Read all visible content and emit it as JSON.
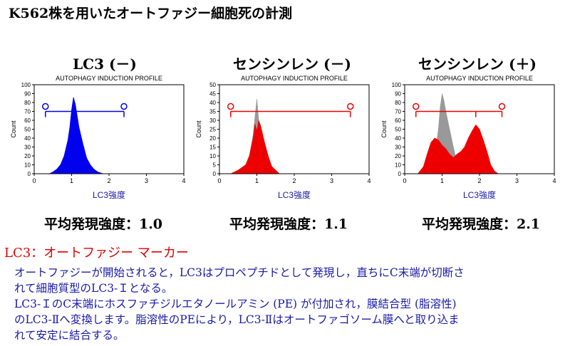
{
  "page": {
    "title": "K562株を用いたオートファジー細胞死の計測",
    "marker_label": "LC3：オートファジー マーカー",
    "description": [
      "オートファジーが開始されると，LC3はプロペプチドとして発現し，直ちにC末端が切断さ",
      "れて細胞質型のLC3-Ｉとなる。",
      "LC3-ＩのC末端にホスファチジルエタノールアミン (PE) が付加され，膜結合型 (脂溶性)",
      "のLC3-Ⅱへ変換します。脂溶性のPEにより，LC3-Ⅱはオートファゴソーム膜へと取り込ま",
      "れて安定に結合する。"
    ]
  },
  "chart_data": [
    {
      "type": "area",
      "panel_title": "LC3 (－)",
      "title": "AUTOPHAGY INDUCTION PROFILE",
      "xlabel": "LC3強度",
      "ylabel": "Count",
      "xlim": [
        0,
        4
      ],
      "ylim": [
        0,
        100
      ],
      "xticks": [
        0,
        1,
        2,
        3,
        4
      ],
      "yticks": [
        0,
        10,
        20,
        30,
        40,
        50,
        60,
        70,
        80,
        90,
        100
      ],
      "series": [
        {
          "color": "#0000ee",
          "values": [
            [
              0.4,
              0
            ],
            [
              0.5,
              2
            ],
            [
              0.6,
              5
            ],
            [
              0.7,
              10
            ],
            [
              0.8,
              20
            ],
            [
              0.9,
              38
            ],
            [
              0.95,
              52
            ],
            [
              1.0,
              72
            ],
            [
              1.05,
              86
            ],
            [
              1.1,
              78
            ],
            [
              1.15,
              65
            ],
            [
              1.2,
              52
            ],
            [
              1.3,
              34
            ],
            [
              1.4,
              18
            ],
            [
              1.5,
              10
            ],
            [
              1.6,
              5
            ],
            [
              1.7,
              2
            ],
            [
              1.85,
              0
            ]
          ]
        }
      ],
      "gate": {
        "x1": 0.3,
        "x2": 2.4,
        "y": 70,
        "color": "#0000ee"
      },
      "mean_label": "平均発現強度：1.0"
    },
    {
      "type": "area",
      "panel_title": "センシンレン (－)",
      "title": "AUTOPHAGY INDUCTION PROFILE",
      "xlabel": "LC3強度",
      "ylabel": "Count",
      "xlim": [
        0,
        4
      ],
      "ylim": [
        0,
        50
      ],
      "xticks": [
        0,
        1,
        2,
        3,
        4
      ],
      "yticks": [
        0,
        5,
        10,
        15,
        20,
        25,
        30,
        35,
        40,
        45,
        50
      ],
      "series": [
        {
          "color": "#999999",
          "values": [
            [
              0.3,
              0
            ],
            [
              0.5,
              2
            ],
            [
              0.7,
              5
            ],
            [
              0.8,
              10
            ],
            [
              0.9,
              22
            ],
            [
              0.95,
              32
            ],
            [
              1.0,
              42
            ],
            [
              1.05,
              30
            ],
            [
              1.1,
              26
            ],
            [
              1.2,
              18
            ],
            [
              1.3,
              10
            ],
            [
              1.4,
              4
            ],
            [
              1.6,
              0
            ]
          ]
        },
        {
          "color": "#ee0000",
          "values": [
            [
              0.3,
              0
            ],
            [
              0.5,
              2
            ],
            [
              0.7,
              5
            ],
            [
              0.8,
              10
            ],
            [
              0.9,
              20
            ],
            [
              0.95,
              28
            ],
            [
              1.0,
              24
            ],
            [
              1.05,
              30
            ],
            [
              1.1,
              27
            ],
            [
              1.2,
              18
            ],
            [
              1.3,
              10
            ],
            [
              1.4,
              4
            ],
            [
              1.6,
              0
            ]
          ]
        }
      ],
      "gate": {
        "x1": 0.3,
        "x2": 3.5,
        "y": 35,
        "color": "#ee0000"
      },
      "mean_label": "平均発現強度：1.1"
    },
    {
      "type": "area",
      "panel_title": "センシンレン (＋)",
      "title": "AUTOPHAGY INDUCTION PROFILE",
      "xlabel": "LC3強度",
      "ylabel": "Count",
      "xlim": [
        0,
        4
      ],
      "ylim": [
        0,
        100
      ],
      "xticks": [
        0,
        1,
        2,
        3,
        4
      ],
      "yticks": [
        0,
        10,
        20,
        30,
        40,
        50,
        60,
        70,
        80,
        90,
        100
      ],
      "series": [
        {
          "color": "#999999",
          "values": [
            [
              0.5,
              0
            ],
            [
              0.7,
              8
            ],
            [
              0.8,
              20
            ],
            [
              0.9,
              50
            ],
            [
              0.95,
              75
            ],
            [
              1.0,
              90
            ],
            [
              1.05,
              82
            ],
            [
              1.1,
              70
            ],
            [
              1.2,
              50
            ],
            [
              1.3,
              30
            ],
            [
              1.4,
              12
            ],
            [
              1.6,
              0
            ]
          ]
        },
        {
          "color": "#ee0000",
          "values": [
            [
              0.35,
              0
            ],
            [
              0.5,
              8
            ],
            [
              0.6,
              22
            ],
            [
              0.7,
              35
            ],
            [
              0.8,
              40
            ],
            [
              0.9,
              38
            ],
            [
              1.0,
              32
            ],
            [
              1.1,
              28
            ],
            [
              1.2,
              22
            ],
            [
              1.3,
              18
            ],
            [
              1.4,
              22
            ],
            [
              1.5,
              25
            ],
            [
              1.6,
              30
            ],
            [
              1.7,
              40
            ],
            [
              1.8,
              48
            ],
            [
              1.9,
              55
            ],
            [
              2.0,
              50
            ],
            [
              2.1,
              38
            ],
            [
              2.2,
              25
            ],
            [
              2.3,
              10
            ],
            [
              2.4,
              3
            ],
            [
              2.5,
              0
            ]
          ]
        }
      ],
      "gate": {
        "x1": 0.3,
        "x2": 2.6,
        "y": 70,
        "color": "#ee0000",
        "mid": 1.9
      },
      "mean_label": "平均発現強度：2.1"
    }
  ]
}
